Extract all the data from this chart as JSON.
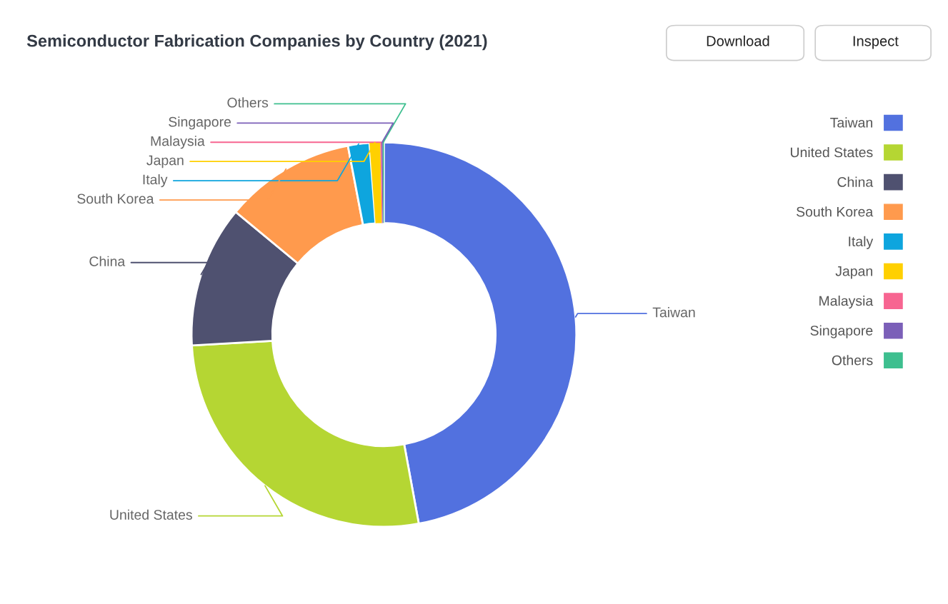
{
  "chart_data": {
    "type": "donut",
    "title": "Semiconductor Fabrication Companies by Country (2021)",
    "categories": [
      "Taiwan",
      "United States",
      "China",
      "South Korea",
      "Italy",
      "Japan",
      "Malaysia",
      "Singapore",
      "Others"
    ],
    "values": [
      47.1,
      27.0,
      11.9,
      11.0,
      1.8,
      0.9,
      0.1,
      0.1,
      0.1
    ],
    "colors": [
      "#5271df",
      "#b5d633",
      "#4f5170",
      "#ff9a4d",
      "#0ea5de",
      "#ffd000",
      "#f76591",
      "#7b5fb8",
      "#3ebf8f"
    ],
    "legend": "top right",
    "annotations": [
      "Download",
      "Inspect"
    ]
  }
}
